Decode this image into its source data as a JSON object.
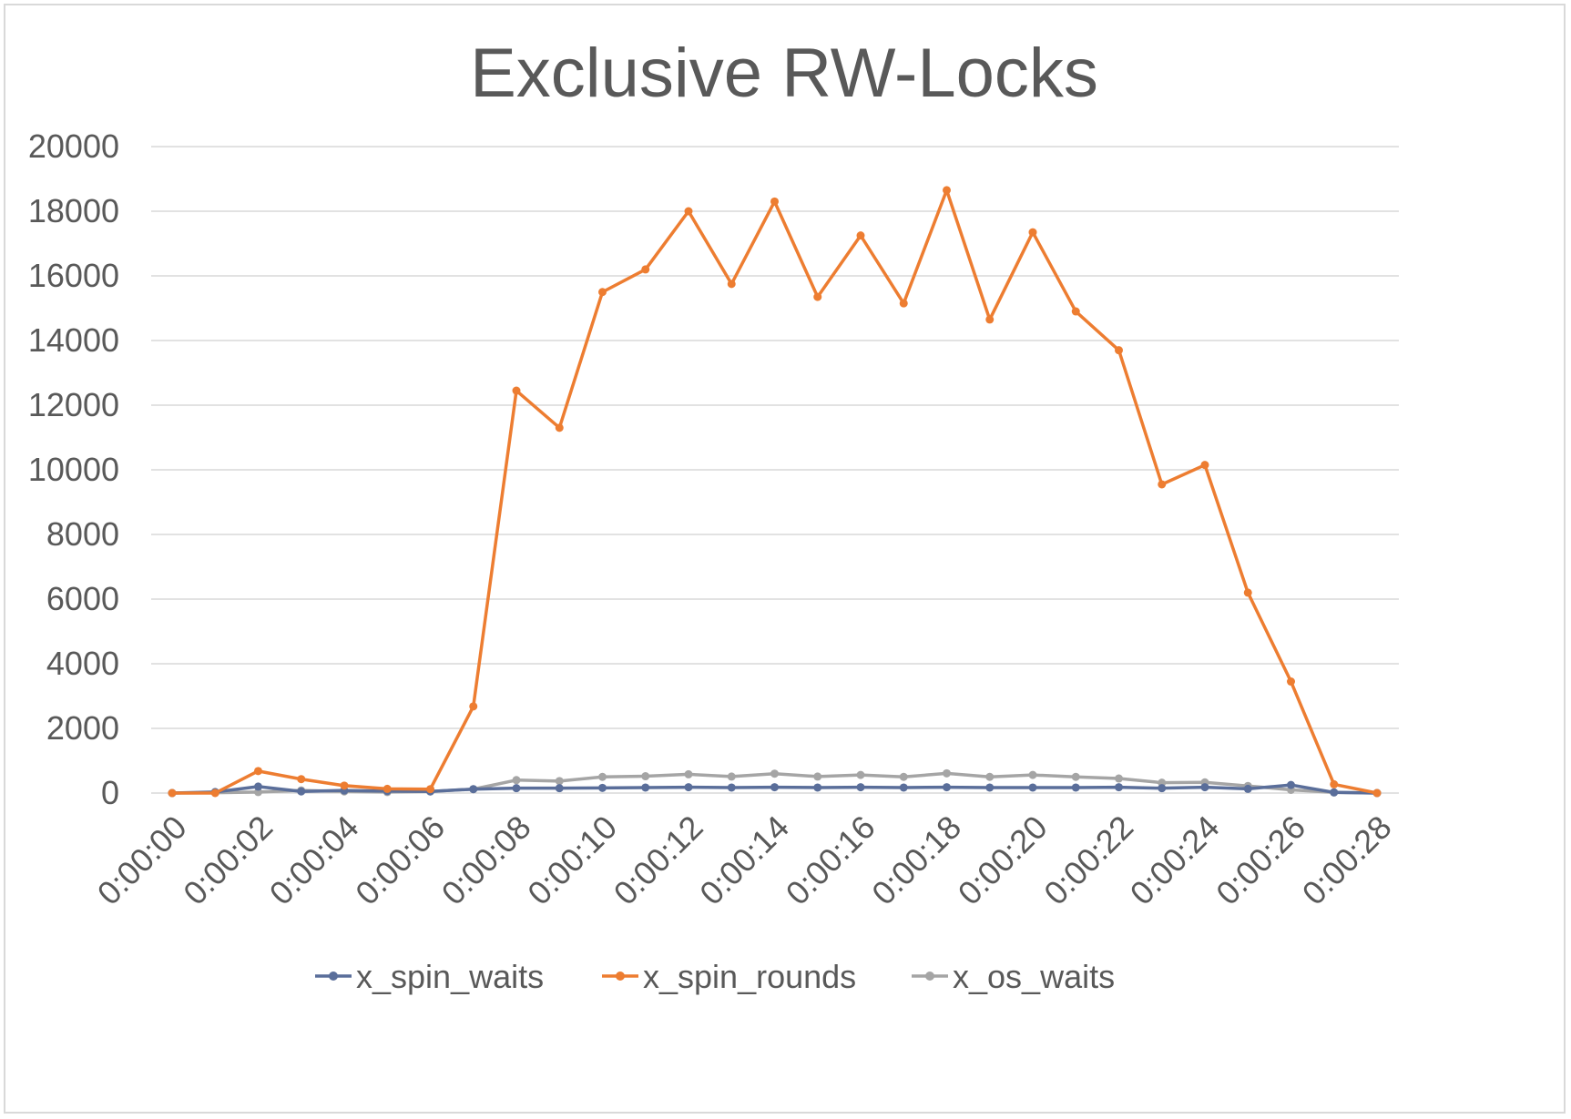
{
  "chart_data": {
    "type": "line",
    "title": "Exclusive RW-Locks",
    "xlabel": "",
    "ylabel": "",
    "ylim": [
      0,
      20000
    ],
    "yticks": [
      "0",
      "2000",
      "4000",
      "6000",
      "8000",
      "10000",
      "12000",
      "14000",
      "16000",
      "18000",
      "20000"
    ],
    "x": [
      "0:00:00",
      "0:00:01",
      "0:00:02",
      "0:00:03",
      "0:00:04",
      "0:00:05",
      "0:00:06",
      "0:00:07",
      "0:00:08",
      "0:00:09",
      "0:00:10",
      "0:00:11",
      "0:00:12",
      "0:00:13",
      "0:00:14",
      "0:00:15",
      "0:00:16",
      "0:00:17",
      "0:00:18",
      "0:00:19",
      "0:00:20",
      "0:00:21",
      "0:00:22",
      "0:00:23",
      "0:00:24",
      "0:00:25",
      "0:00:26",
      "0:00:27",
      "0:00:28"
    ],
    "xtick_labels": [
      "0:00:00",
      "0:00:02",
      "0:00:04",
      "0:00:06",
      "0:00:08",
      "0:00:10",
      "0:00:12",
      "0:00:14",
      "0:00:16",
      "0:00:18",
      "0:00:20",
      "0:00:22",
      "0:00:24",
      "0:00:26",
      "0:00:28"
    ],
    "grid": true,
    "legend_position": "bottom",
    "series": [
      {
        "name": "x_spin_waits",
        "color": "#5a6e9a",
        "values": [
          0,
          30,
          200,
          50,
          80,
          60,
          50,
          120,
          150,
          150,
          160,
          170,
          180,
          170,
          180,
          170,
          180,
          170,
          180,
          170,
          170,
          170,
          180,
          150,
          180,
          130,
          250,
          20,
          0
        ]
      },
      {
        "name": "x_spin_rounds",
        "color": "#ed7d31",
        "values": [
          0,
          0,
          680,
          430,
          230,
          130,
          120,
          2680,
          12450,
          11300,
          15500,
          16200,
          18000,
          15750,
          18300,
          15350,
          17250,
          15150,
          18650,
          14650,
          17350,
          14900,
          13700,
          9550,
          10150,
          6200,
          3450,
          270,
          0
        ]
      },
      {
        "name": "x_os_waits",
        "color": "#a5a5a5",
        "values": [
          0,
          10,
          30,
          80,
          50,
          30,
          50,
          120,
          400,
          370,
          500,
          520,
          580,
          510,
          600,
          510,
          560,
          500,
          610,
          500,
          560,
          500,
          450,
          320,
          330,
          220,
          100,
          20,
          0
        ]
      }
    ]
  }
}
